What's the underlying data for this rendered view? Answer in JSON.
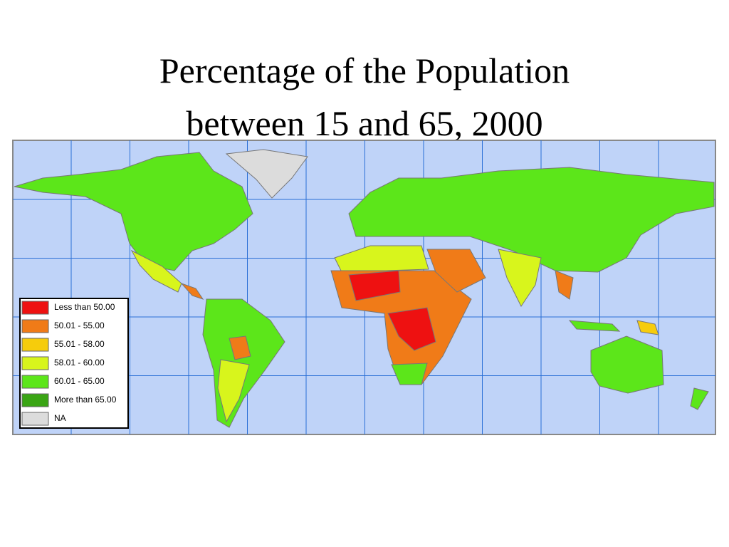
{
  "title": [
    "Percentage of the Population",
    "between 15 and 65, 2000"
  ],
  "legend": [
    {
      "label": "Less than 50.00",
      "color": "#ee1111"
    },
    {
      "label": "50.01 - 55.00",
      "color": "#f07b18"
    },
    {
      "label": "55.01 - 58.00",
      "color": "#f6cc0c"
    },
    {
      "label": "58.01 - 60.00",
      "color": "#d8f51c"
    },
    {
      "label": "60.01 - 65.00",
      "color": "#5ce61a"
    },
    {
      "label": "More than 65.00",
      "color": "#3aa514"
    },
    {
      "label": "NA",
      "color": "#dcdcdc"
    }
  ]
}
